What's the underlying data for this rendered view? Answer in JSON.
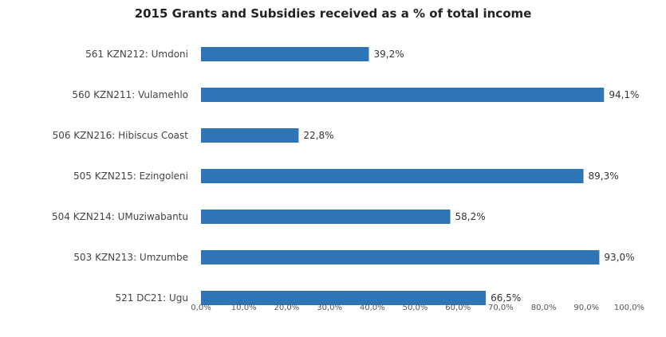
{
  "chart_data": {
    "type": "bar",
    "orientation": "horizontal",
    "title": "2015 Grants and Subsidies received as a % of total income",
    "categories": [
      "561 KZN212: Umdoni",
      "560 KZN211: Vulamehlo",
      "506 KZN216: Hibiscus Coast",
      "505 KZN215: Ezingoleni",
      "504 KZN214: UMuziwabantu",
      "503 KZN213: Umzumbe",
      "521 DC21: Ugu"
    ],
    "values": [
      39.2,
      94.1,
      22.8,
      89.3,
      58.2,
      93.0,
      66.5
    ],
    "data_labels": [
      "39,2%",
      "94,1%",
      "22,8%",
      "89,3%",
      "58,2%",
      "93,0%",
      "66,5%"
    ],
    "xlim": [
      0,
      100
    ],
    "x_ticks": [
      0,
      10,
      20,
      30,
      40,
      50,
      60,
      70,
      80,
      90,
      100
    ],
    "x_tick_labels": [
      "0,0%",
      "10,0%",
      "20,0%",
      "30,0%",
      "40,0%",
      "50,0%",
      "60,0%",
      "70,0%",
      "80,0%",
      "90,0%",
      "100,0%"
    ],
    "grid": false,
    "bar_color": "#2e75b6"
  }
}
